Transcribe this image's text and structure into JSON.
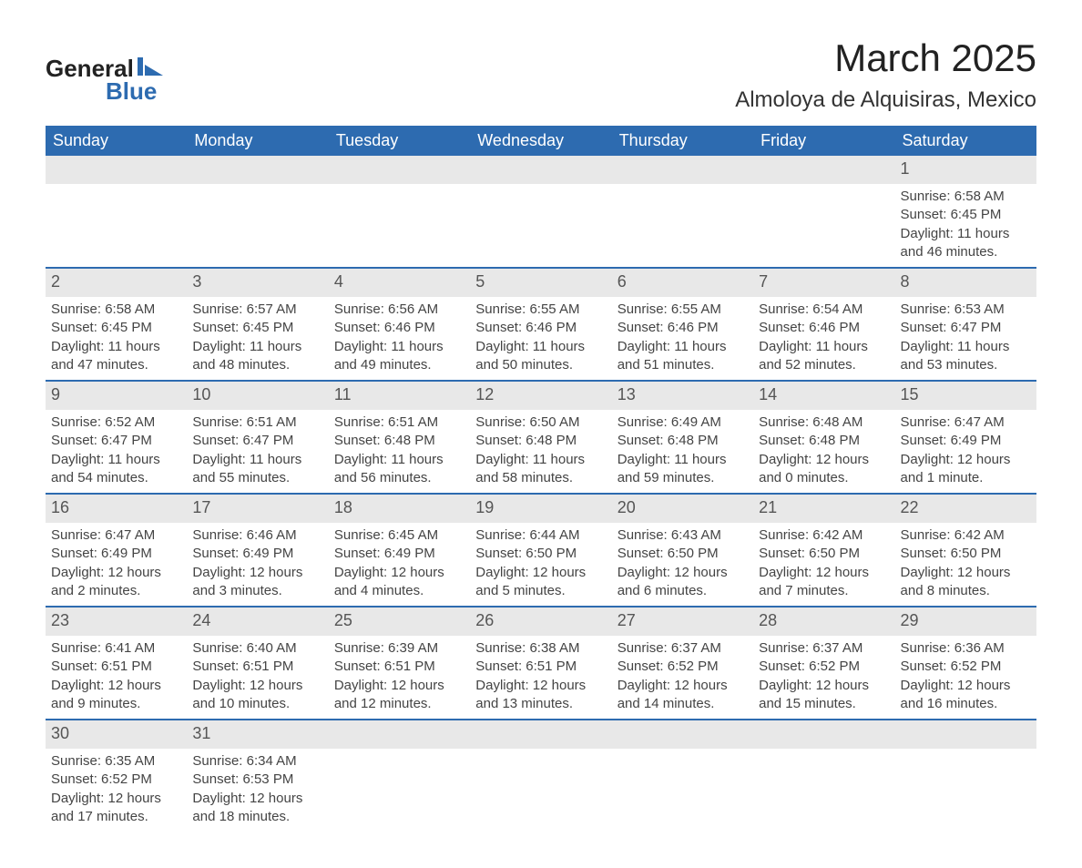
{
  "logo": {
    "text_general": "General",
    "text_blue": "Blue",
    "shape_color": "#2d6bb0",
    "text_color_general": "#222222"
  },
  "title": "March 2025",
  "location": "Almoloya de Alquisiras, Mexico",
  "colors": {
    "header_bg": "#2d6bb0",
    "header_text": "#ffffff",
    "daynum_bg": "#e8e8e8",
    "daynum_text": "#555555",
    "body_text": "#444444",
    "border": "#2d6bb0",
    "background": "#ffffff"
  },
  "day_headers": [
    "Sunday",
    "Monday",
    "Tuesday",
    "Wednesday",
    "Thursday",
    "Friday",
    "Saturday"
  ],
  "weeks": [
    [
      null,
      null,
      null,
      null,
      null,
      null,
      {
        "n": "1",
        "sunrise": "Sunrise: 6:58 AM",
        "sunset": "Sunset: 6:45 PM",
        "daylight": "Daylight: 11 hours and 46 minutes."
      }
    ],
    [
      {
        "n": "2",
        "sunrise": "Sunrise: 6:58 AM",
        "sunset": "Sunset: 6:45 PM",
        "daylight": "Daylight: 11 hours and 47 minutes."
      },
      {
        "n": "3",
        "sunrise": "Sunrise: 6:57 AM",
        "sunset": "Sunset: 6:45 PM",
        "daylight": "Daylight: 11 hours and 48 minutes."
      },
      {
        "n": "4",
        "sunrise": "Sunrise: 6:56 AM",
        "sunset": "Sunset: 6:46 PM",
        "daylight": "Daylight: 11 hours and 49 minutes."
      },
      {
        "n": "5",
        "sunrise": "Sunrise: 6:55 AM",
        "sunset": "Sunset: 6:46 PM",
        "daylight": "Daylight: 11 hours and 50 minutes."
      },
      {
        "n": "6",
        "sunrise": "Sunrise: 6:55 AM",
        "sunset": "Sunset: 6:46 PM",
        "daylight": "Daylight: 11 hours and 51 minutes."
      },
      {
        "n": "7",
        "sunrise": "Sunrise: 6:54 AM",
        "sunset": "Sunset: 6:46 PM",
        "daylight": "Daylight: 11 hours and 52 minutes."
      },
      {
        "n": "8",
        "sunrise": "Sunrise: 6:53 AM",
        "sunset": "Sunset: 6:47 PM",
        "daylight": "Daylight: 11 hours and 53 minutes."
      }
    ],
    [
      {
        "n": "9",
        "sunrise": "Sunrise: 6:52 AM",
        "sunset": "Sunset: 6:47 PM",
        "daylight": "Daylight: 11 hours and 54 minutes."
      },
      {
        "n": "10",
        "sunrise": "Sunrise: 6:51 AM",
        "sunset": "Sunset: 6:47 PM",
        "daylight": "Daylight: 11 hours and 55 minutes."
      },
      {
        "n": "11",
        "sunrise": "Sunrise: 6:51 AM",
        "sunset": "Sunset: 6:48 PM",
        "daylight": "Daylight: 11 hours and 56 minutes."
      },
      {
        "n": "12",
        "sunrise": "Sunrise: 6:50 AM",
        "sunset": "Sunset: 6:48 PM",
        "daylight": "Daylight: 11 hours and 58 minutes."
      },
      {
        "n": "13",
        "sunrise": "Sunrise: 6:49 AM",
        "sunset": "Sunset: 6:48 PM",
        "daylight": "Daylight: 11 hours and 59 minutes."
      },
      {
        "n": "14",
        "sunrise": "Sunrise: 6:48 AM",
        "sunset": "Sunset: 6:48 PM",
        "daylight": "Daylight: 12 hours and 0 minutes."
      },
      {
        "n": "15",
        "sunrise": "Sunrise: 6:47 AM",
        "sunset": "Sunset: 6:49 PM",
        "daylight": "Daylight: 12 hours and 1 minute."
      }
    ],
    [
      {
        "n": "16",
        "sunrise": "Sunrise: 6:47 AM",
        "sunset": "Sunset: 6:49 PM",
        "daylight": "Daylight: 12 hours and 2 minutes."
      },
      {
        "n": "17",
        "sunrise": "Sunrise: 6:46 AM",
        "sunset": "Sunset: 6:49 PM",
        "daylight": "Daylight: 12 hours and 3 minutes."
      },
      {
        "n": "18",
        "sunrise": "Sunrise: 6:45 AM",
        "sunset": "Sunset: 6:49 PM",
        "daylight": "Daylight: 12 hours and 4 minutes."
      },
      {
        "n": "19",
        "sunrise": "Sunrise: 6:44 AM",
        "sunset": "Sunset: 6:50 PM",
        "daylight": "Daylight: 12 hours and 5 minutes."
      },
      {
        "n": "20",
        "sunrise": "Sunrise: 6:43 AM",
        "sunset": "Sunset: 6:50 PM",
        "daylight": "Daylight: 12 hours and 6 minutes."
      },
      {
        "n": "21",
        "sunrise": "Sunrise: 6:42 AM",
        "sunset": "Sunset: 6:50 PM",
        "daylight": "Daylight: 12 hours and 7 minutes."
      },
      {
        "n": "22",
        "sunrise": "Sunrise: 6:42 AM",
        "sunset": "Sunset: 6:50 PM",
        "daylight": "Daylight: 12 hours and 8 minutes."
      }
    ],
    [
      {
        "n": "23",
        "sunrise": "Sunrise: 6:41 AM",
        "sunset": "Sunset: 6:51 PM",
        "daylight": "Daylight: 12 hours and 9 minutes."
      },
      {
        "n": "24",
        "sunrise": "Sunrise: 6:40 AM",
        "sunset": "Sunset: 6:51 PM",
        "daylight": "Daylight: 12 hours and 10 minutes."
      },
      {
        "n": "25",
        "sunrise": "Sunrise: 6:39 AM",
        "sunset": "Sunset: 6:51 PM",
        "daylight": "Daylight: 12 hours and 12 minutes."
      },
      {
        "n": "26",
        "sunrise": "Sunrise: 6:38 AM",
        "sunset": "Sunset: 6:51 PM",
        "daylight": "Daylight: 12 hours and 13 minutes."
      },
      {
        "n": "27",
        "sunrise": "Sunrise: 6:37 AM",
        "sunset": "Sunset: 6:52 PM",
        "daylight": "Daylight: 12 hours and 14 minutes."
      },
      {
        "n": "28",
        "sunrise": "Sunrise: 6:37 AM",
        "sunset": "Sunset: 6:52 PM",
        "daylight": "Daylight: 12 hours and 15 minutes."
      },
      {
        "n": "29",
        "sunrise": "Sunrise: 6:36 AM",
        "sunset": "Sunset: 6:52 PM",
        "daylight": "Daylight: 12 hours and 16 minutes."
      }
    ],
    [
      {
        "n": "30",
        "sunrise": "Sunrise: 6:35 AM",
        "sunset": "Sunset: 6:52 PM",
        "daylight": "Daylight: 12 hours and 17 minutes."
      },
      {
        "n": "31",
        "sunrise": "Sunrise: 6:34 AM",
        "sunset": "Sunset: 6:53 PM",
        "daylight": "Daylight: 12 hours and 18 minutes."
      },
      null,
      null,
      null,
      null,
      null
    ]
  ]
}
